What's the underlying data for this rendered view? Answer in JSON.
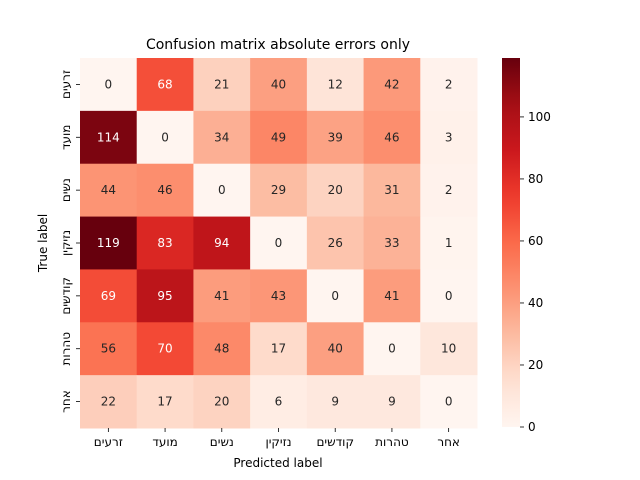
{
  "chart_data": {
    "type": "heatmap",
    "title": "Confusion matrix absolute errors only",
    "xlabel": "Predicted label",
    "ylabel": "True label",
    "x_categories": [
      "זרעים",
      "מועד",
      "נשים",
      "נזיקין",
      "קודשים",
      "טהרות",
      "אחר"
    ],
    "y_categories": [
      "זרעים",
      "מועד",
      "נשים",
      "נזיקין",
      "קודשים",
      "טהרות",
      "אחר"
    ],
    "values": [
      [
        0,
        68,
        21,
        40,
        12,
        42,
        2
      ],
      [
        114,
        0,
        34,
        49,
        39,
        46,
        3
      ],
      [
        44,
        46,
        0,
        29,
        20,
        31,
        2
      ],
      [
        119,
        83,
        94,
        0,
        26,
        33,
        1
      ],
      [
        69,
        95,
        41,
        43,
        0,
        41,
        0
      ],
      [
        56,
        70,
        48,
        17,
        40,
        0,
        10
      ],
      [
        22,
        17,
        20,
        6,
        9,
        9,
        0
      ]
    ],
    "colormap": "Reds",
    "value_range": [
      0,
      119
    ],
    "colorbar_ticks": [
      0,
      20,
      40,
      60,
      80,
      100
    ]
  }
}
